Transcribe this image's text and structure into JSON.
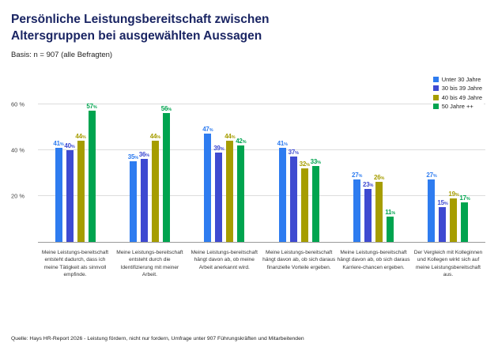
{
  "header": {
    "title": "Persönliche Leistungsbereitschaft zwischen\nAltersgruppen bei ausgewählten Aussagen",
    "basis": "Basis: n = 907 (alle Befragten)"
  },
  "footer": {
    "source": "Quelle: Hays HR-Report 2026 - Leistung fördern, nicht nur fordern, Umfrage unter 907 Führungskräften und Mitarbeitenden"
  },
  "colors": {
    "title": "#1a2563",
    "grid": "#dcdcdc",
    "baseline": "#9a9a9a"
  },
  "chart_data": {
    "type": "bar",
    "unit": "%",
    "ylim": [
      0,
      64
    ],
    "yticks": [
      20,
      40,
      60
    ],
    "ytick_suffix": " %",
    "grid": true,
    "legend_position": "top-right",
    "categories": [
      "Meine Leistungs-bereitschaft entsteht dadurch, dass ich meine Tätigkeit als sinnvoll empfinde.",
      "Meine Leistungs-bereitschaft entsteht durch die Identifizierung mit meiner Arbeit.",
      "Meine Leistungs-bereitschaft hängt davon ab, ob meine Arbeit anerkannt wird.",
      "Meine Leistungs-bereitschaft hängt davon ab, ob sich daraus finanzielle Vorteile ergeben.",
      "Meine Leistungs-bereitschaft hängt davon ab, ob sich daraus Karriere-chancen ergeben.",
      "Der Vergleich mit Kolleginnen und Kollegen wirkt sich auf meine Leistungsbereitschaft aus."
    ],
    "series": [
      {
        "name": "Unter 30 Jahre",
        "color": "#2e7cf0",
        "values": [
          41,
          35,
          47,
          41,
          27,
          27
        ]
      },
      {
        "name": "30 bis 39 Jahre",
        "color": "#3e4ad1",
        "values": [
          40,
          36,
          39,
          37,
          23,
          15
        ]
      },
      {
        "name": "40 bis 49 Jahre",
        "color": "#a69d00",
        "values": [
          44,
          44,
          44,
          32,
          26,
          19
        ]
      },
      {
        "name": "50 Jahre ++",
        "color": "#00a44f",
        "values": [
          57,
          56,
          42,
          33,
          11,
          17
        ]
      }
    ]
  }
}
